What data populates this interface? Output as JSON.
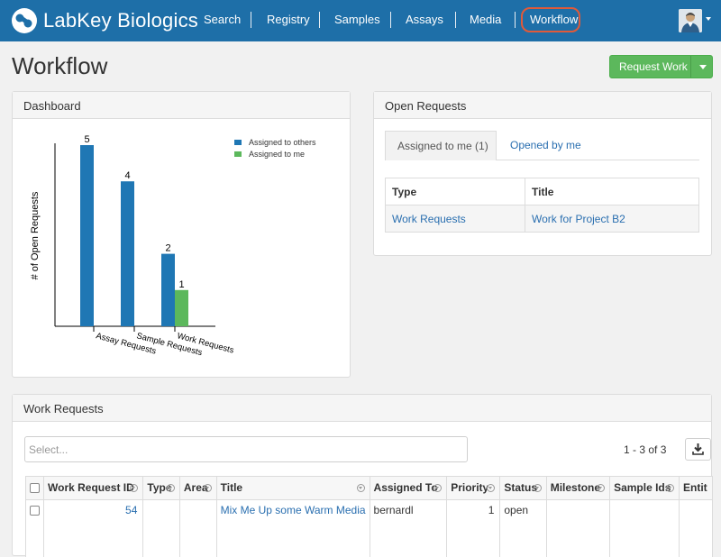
{
  "app": {
    "brand": "LabKey",
    "product": "Biologics"
  },
  "nav": {
    "items": [
      "Search",
      "Registry",
      "Samples",
      "Assays",
      "Media",
      "Workflow"
    ],
    "active": "Workflow"
  },
  "page": {
    "title": "Workflow",
    "request_work_label": "Request Work"
  },
  "dashboard": {
    "title": "Dashboard"
  },
  "chart_data": {
    "type": "bar",
    "categories": [
      "Assay Requests",
      "Sample Requests",
      "Work Requests"
    ],
    "series": [
      {
        "name": "Assigned to others",
        "values": [
          5,
          4,
          2
        ],
        "color": "#1f77b4"
      },
      {
        "name": "Assigned to me",
        "values": [
          0,
          0,
          1
        ],
        "color": "#5cb85c"
      }
    ],
    "ylabel": "# of Open Requests",
    "xlabel": "",
    "ylim": [
      0,
      5
    ],
    "legend": "top-right",
    "grid": false
  },
  "open_requests": {
    "title": "Open Requests",
    "tabs": [
      {
        "label": "Assigned to me (1)",
        "active": true
      },
      {
        "label": "Opened by me",
        "active": false
      }
    ],
    "columns": [
      "Type",
      "Title"
    ],
    "rows": [
      {
        "type": "Work Requests",
        "title": "Work for Project B2"
      }
    ]
  },
  "work_requests": {
    "title": "Work Requests",
    "select_placeholder": "Select...",
    "pager": "1 - 3 of 3",
    "columns": [
      "Work Request ID",
      "Type",
      "Area",
      "Title",
      "Assigned To",
      "Priority",
      "Status",
      "Milestone",
      "Sample Ids",
      "Entit"
    ],
    "rows": [
      {
        "id": "54",
        "type": "",
        "area": "",
        "title": "Mix Me Up some Warm Media",
        "assigned_to": "bernardl",
        "priority": "1",
        "status": "open",
        "milestone": "",
        "sample_ids": "",
        "entity": ""
      }
    ]
  }
}
